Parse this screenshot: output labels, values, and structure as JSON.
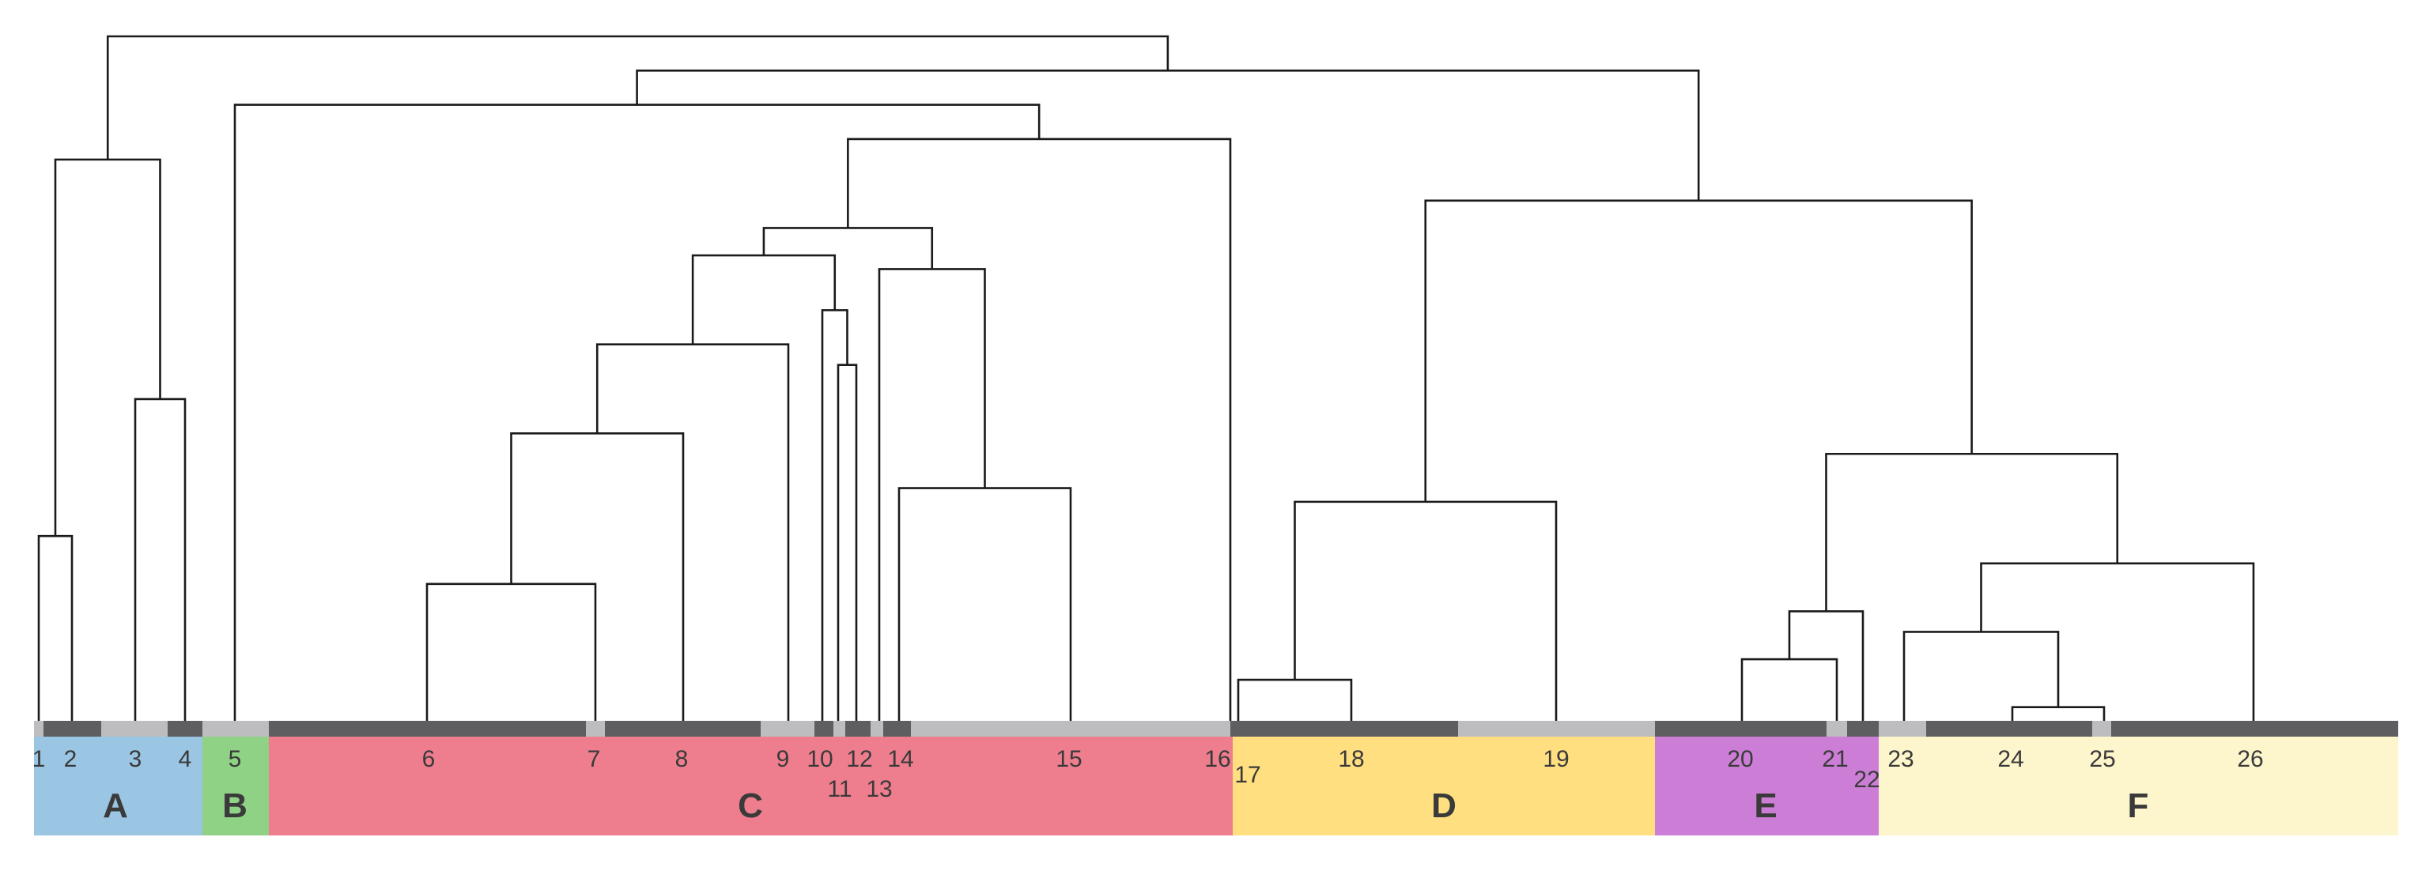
{
  "chart_data": {
    "type": "dendrogram",
    "title": "",
    "leaves": [
      "1",
      "2",
      "3",
      "4",
      "5",
      "6",
      "7",
      "8",
      "9",
      "10",
      "11",
      "12",
      "13",
      "14",
      "15",
      "16",
      "17",
      "18",
      "19",
      "20",
      "21",
      "22",
      "23",
      "24",
      "25",
      "26"
    ],
    "groups": [
      {
        "label": "A",
        "leaves": [
          "1",
          "2",
          "3",
          "4"
        ],
        "color": "#9ac6e3"
      },
      {
        "label": "B",
        "leaves": [
          "5"
        ],
        "color": "#8fd185"
      },
      {
        "label": "C",
        "leaves": [
          "6",
          "7",
          "8",
          "9",
          "10",
          "11",
          "12",
          "13",
          "14",
          "15",
          "16"
        ],
        "color": "#ee7e8e"
      },
      {
        "label": "D",
        "leaves": [
          "17",
          "18",
          "19"
        ],
        "color": "#ffdf80"
      },
      {
        "label": "E",
        "leaves": [
          "20",
          "21",
          "22"
        ],
        "color": "#cc7ed6"
      },
      {
        "label": "F",
        "leaves": [
          "23",
          "24",
          "25",
          "26"
        ],
        "color": "#fdf5cb"
      }
    ],
    "merges": [
      {
        "id": "m1",
        "left": "1",
        "right": "2",
        "height": 0.27
      },
      {
        "id": "m2",
        "left": "3",
        "right": "4",
        "height": 0.47
      },
      {
        "id": "m3",
        "left": "m1",
        "right": "m2",
        "height": 0.82
      },
      {
        "id": "m4",
        "left": "6",
        "right": "7",
        "height": 0.2
      },
      {
        "id": "m5",
        "left": "m4",
        "right": "8",
        "height": 0.42
      },
      {
        "id": "m6",
        "left": "m5",
        "right": "9",
        "height": 0.55
      },
      {
        "id": "m7",
        "left": "11",
        "right": "12",
        "height": 0.52
      },
      {
        "id": "m8",
        "left": "10",
        "right": "m7",
        "height": 0.6
      },
      {
        "id": "m9",
        "left": "m6",
        "right": "m8",
        "height": 0.68
      },
      {
        "id": "m10",
        "left": "14",
        "right": "15",
        "height": 0.34
      },
      {
        "id": "m11",
        "left": "13",
        "right": "m10",
        "height": 0.66
      },
      {
        "id": "m12",
        "left": "m9",
        "right": "m11",
        "height": 0.72
      },
      {
        "id": "m13",
        "left": "m12",
        "right": "16",
        "height": 0.85
      },
      {
        "id": "m14",
        "left": "5",
        "right": "m13",
        "height": 0.9
      },
      {
        "id": "m15",
        "left": "17",
        "right": "18",
        "height": 0.06
      },
      {
        "id": "m16",
        "left": "m15",
        "right": "19",
        "height": 0.32
      },
      {
        "id": "m17",
        "left": "20",
        "right": "21",
        "height": 0.09
      },
      {
        "id": "m18",
        "left": "m17",
        "right": "22",
        "height": 0.16
      },
      {
        "id": "m19",
        "left": "24",
        "right": "25",
        "height": 0.02
      },
      {
        "id": "m20",
        "left": "23",
        "right": "m19",
        "height": 0.13
      },
      {
        "id": "m21",
        "left": "m20",
        "right": "26",
        "height": 0.23
      },
      {
        "id": "m22",
        "left": "m18",
        "right": "m21",
        "height": 0.39
      },
      {
        "id": "m23",
        "left": "m16",
        "right": "m22",
        "height": 0.76
      },
      {
        "id": "m24",
        "left": "m14",
        "right": "m23",
        "height": 0.95
      },
      {
        "id": "m25",
        "left": "m3",
        "right": "m24",
        "height": 1.0
      }
    ]
  }
}
